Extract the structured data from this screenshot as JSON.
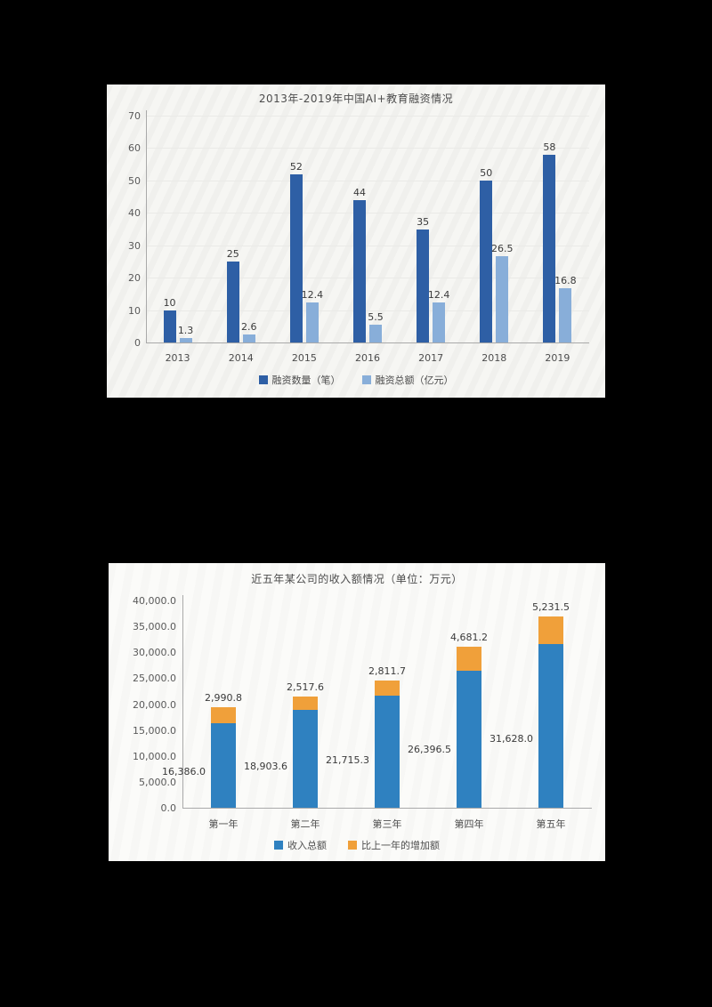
{
  "page": {
    "background": "#000000"
  },
  "chart_data": [
    {
      "id": "ai-education-financing",
      "type": "bar",
      "title": "2013年-2019年中国AI+教育融资情况",
      "categories": [
        "2013",
        "2014",
        "2015",
        "2016",
        "2017",
        "2018",
        "2019"
      ],
      "series": [
        {
          "name": "融资数量（笔）",
          "color": "#2e5fa5",
          "values": [
            10,
            25,
            52,
            44,
            35,
            50,
            58
          ],
          "labels": [
            "10",
            "25",
            "52",
            "44",
            "35",
            "50",
            "58"
          ]
        },
        {
          "name": "融资总额（亿元）",
          "color": "#88aed9",
          "values": [
            1.3,
            2.6,
            12.4,
            5.5,
            12.4,
            26.5,
            16.8
          ],
          "labels": [
            "1.3",
            "2.6",
            "12.4",
            "5.5",
            "12.4",
            "26.5",
            "16.8"
          ]
        }
      ],
      "ylim": [
        0,
        70
      ],
      "ytick_labels": [
        "70",
        "60",
        "50",
        "40",
        "30",
        "20",
        "10",
        "0"
      ],
      "grid": true,
      "legend_position": "bottom"
    },
    {
      "id": "company-revenue-5years",
      "type": "stacked-bar",
      "title": "近五年某公司的收入额情况（单位：万元）",
      "categories": [
        "第一年",
        "第二年",
        "第三年",
        "第四年",
        "第五年"
      ],
      "series": [
        {
          "name": "收入总额",
          "color": "#2f81c0",
          "values": [
            16386.0,
            18903.6,
            21715.3,
            26396.5,
            31628.0
          ],
          "labels": [
            "16,386.0",
            "18,903.6",
            "21,715.3",
            "26,396.5",
            "31,628.0"
          ],
          "label_placement": "left"
        },
        {
          "name": "比上一年的增加额",
          "color": "#f0a03a",
          "values": [
            2990.8,
            2517.6,
            2811.7,
            4681.2,
            5231.5
          ],
          "labels": [
            "2,990.8",
            "2,517.6",
            "2,811.7",
            "4,681.2",
            "5,231.5"
          ],
          "label_placement": "top"
        }
      ],
      "ylim": [
        0,
        40000
      ],
      "ytick_labels": [
        "40,000.0",
        "35,000.0",
        "30,000.0",
        "25,000.0",
        "20,000.0",
        "15,000.0",
        "10,000.0",
        "5,000.0",
        "0.0"
      ],
      "grid": false,
      "legend_position": "bottom"
    }
  ]
}
